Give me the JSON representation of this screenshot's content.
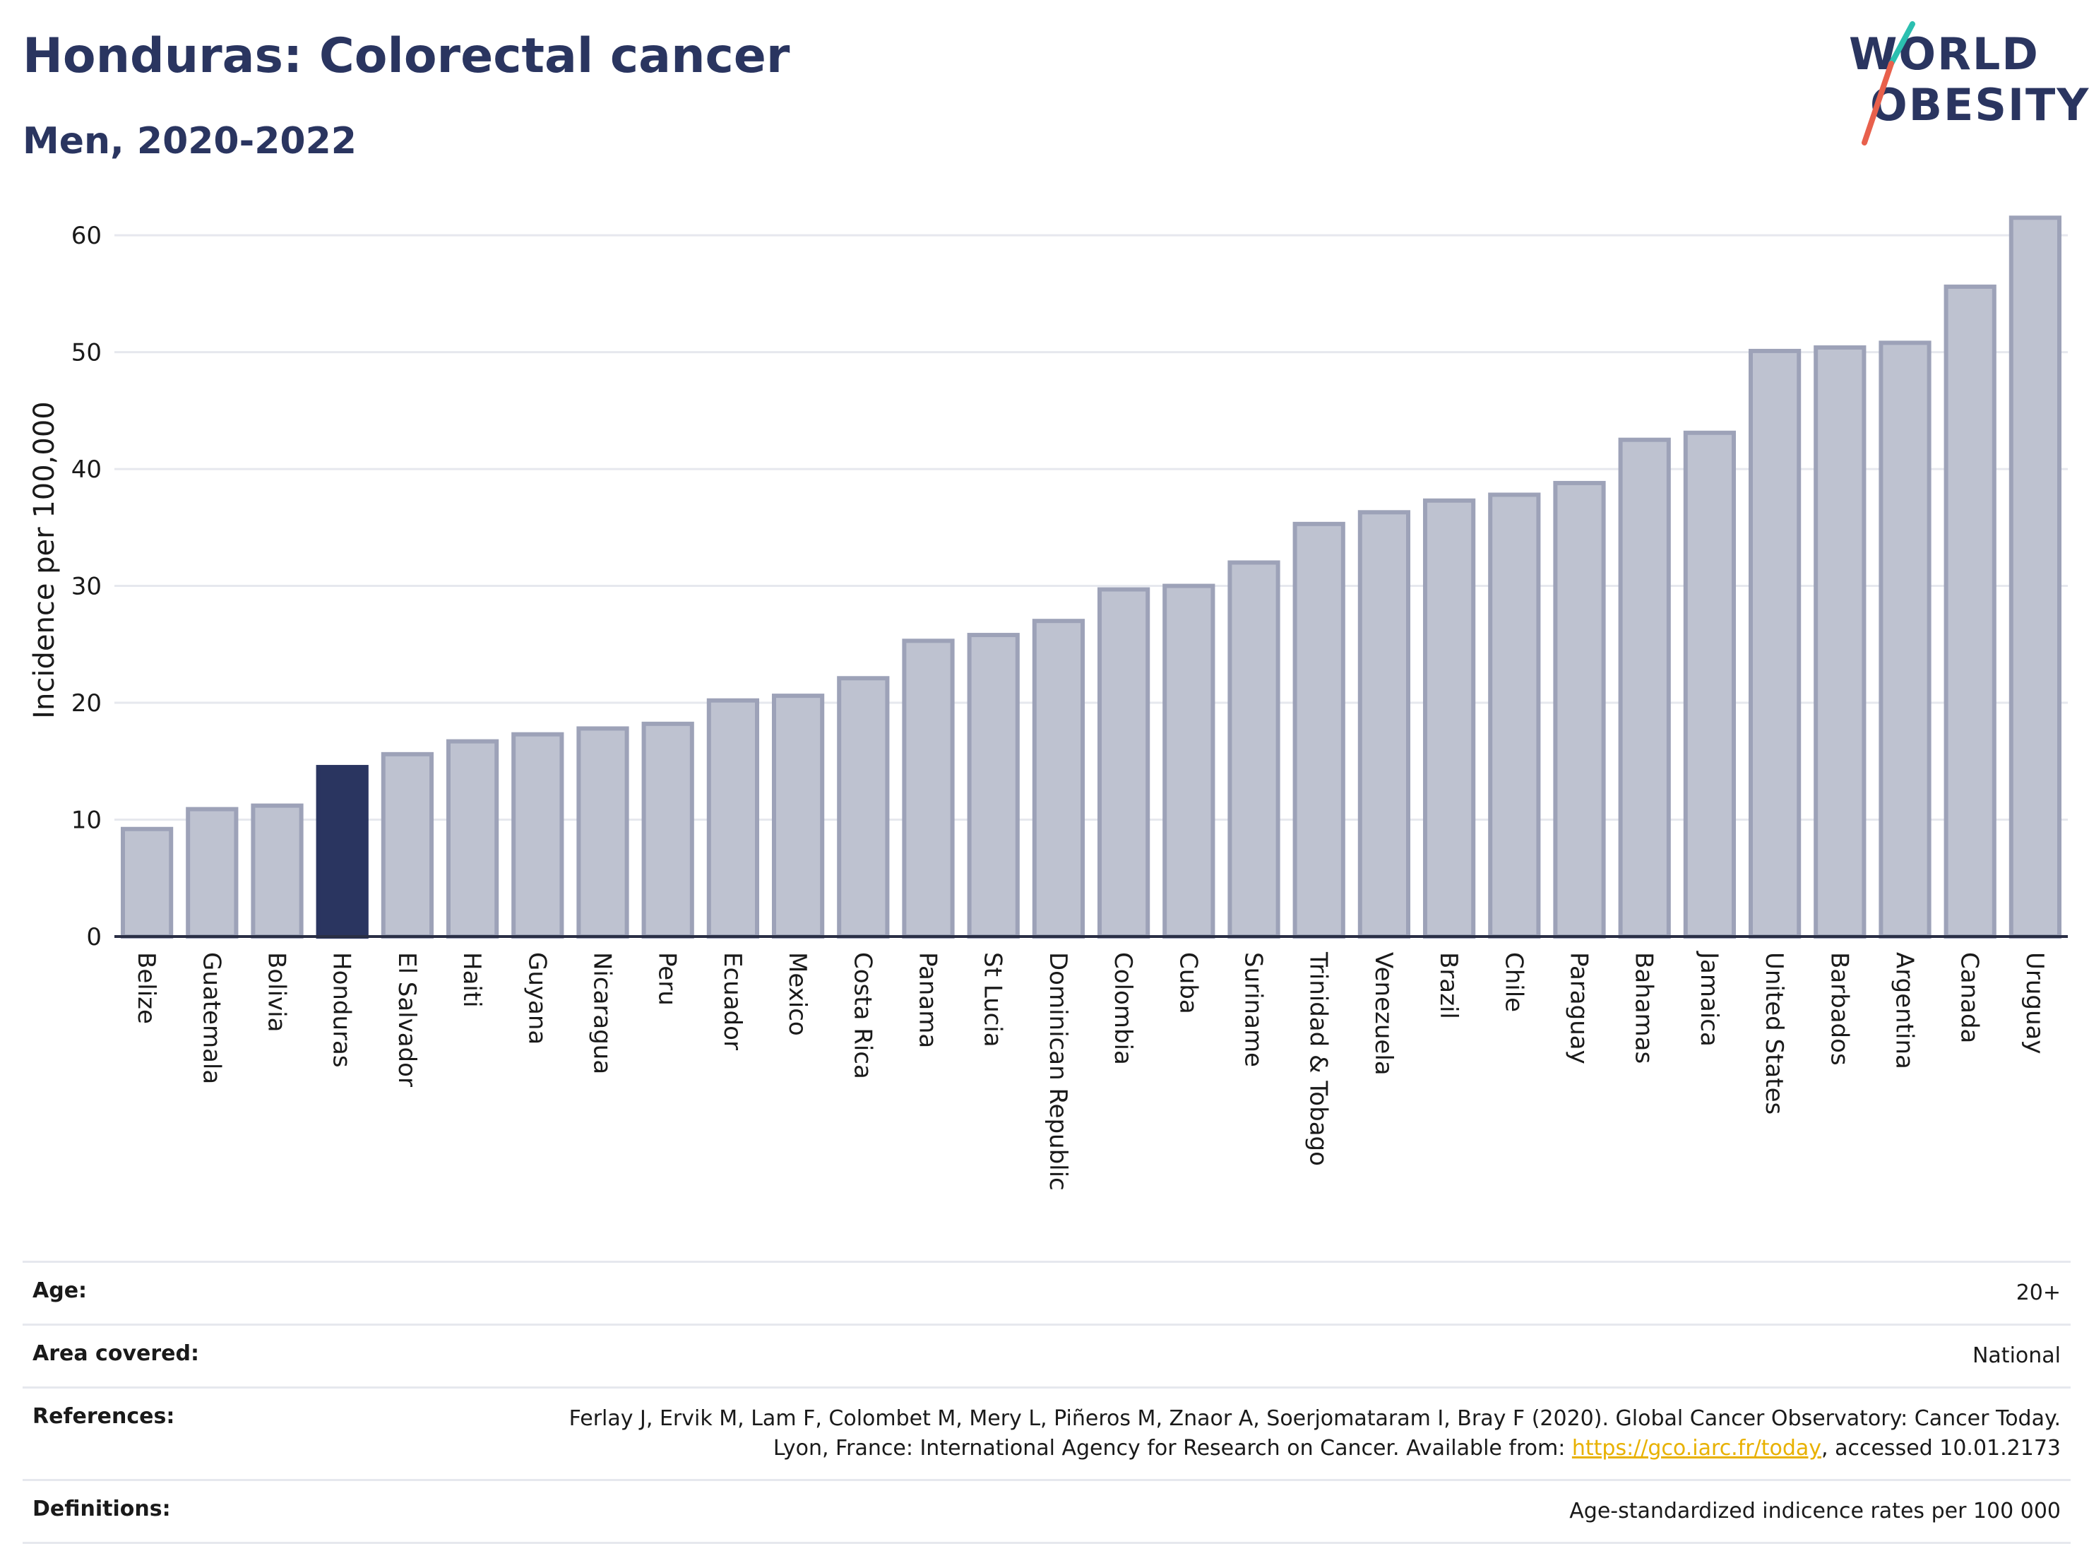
{
  "header": {
    "title": "Honduras: Colorectal cancer",
    "subtitle": "Men, 2020-2022"
  },
  "logo": {
    "line1": "WORLD",
    "line2": "OBESITY",
    "colors": {
      "text": "#2a3560",
      "slash_top": "#2bbfb0",
      "slash_bottom": "#e8604c"
    }
  },
  "chart_data": {
    "type": "bar",
    "ylabel": "Incidence per 100,000",
    "xlabel": "",
    "ylim": [
      0,
      62
    ],
    "yticks": [
      0,
      10,
      20,
      30,
      40,
      50,
      60
    ],
    "grid": true,
    "highlight": "Honduras",
    "colors": {
      "bar": "#bec2d0",
      "bar_stroke": "#9da2b8",
      "highlight": "#2a3560",
      "grid": "#e6e8ee"
    },
    "categories": [
      "Belize",
      "Guatemala",
      "Bolivia",
      "Honduras",
      "El Salvador",
      "Haiti",
      "Guyana",
      "Nicaragua",
      "Peru",
      "Ecuador",
      "Mexico",
      "Costa Rica",
      "Panama",
      "St Lucia",
      "Dominican Republic",
      "Colombia",
      "Cuba",
      "Suriname",
      "Trinidad & Tobago",
      "Venezuela",
      "Brazil",
      "Chile",
      "Paraguay",
      "Bahamas",
      "Jamaica",
      "United States",
      "Barbados",
      "Argentina",
      "Canada",
      "Uruguay"
    ],
    "values": [
      9.2,
      10.9,
      11.2,
      14.5,
      15.6,
      16.7,
      17.3,
      17.8,
      18.2,
      20.2,
      20.6,
      22.1,
      25.3,
      25.8,
      27.0,
      29.7,
      30.0,
      32.0,
      35.3,
      36.3,
      37.3,
      37.8,
      38.8,
      42.5,
      43.1,
      50.1,
      50.4,
      50.8,
      55.6,
      61.5
    ]
  },
  "info": {
    "rows": [
      {
        "key": "Age:",
        "value": "20+"
      },
      {
        "key": "Area covered:",
        "value": "National"
      },
      {
        "key": "References:",
        "value_before": "Ferlay J, Ervik M, Lam F, Colombet M, Mery L, Piñeros M, Znaor A, Soerjomataram I, Bray F (2020). Global Cancer Observatory: Cancer Today. Lyon, France: International Agency for Research on Cancer. Available from: ",
        "link": "https://gco.iarc.fr/today",
        "value_after": ", accessed 10.01.2173"
      },
      {
        "key": "Definitions:",
        "value": "Age-standardized indicence rates per 100 000"
      }
    ]
  }
}
